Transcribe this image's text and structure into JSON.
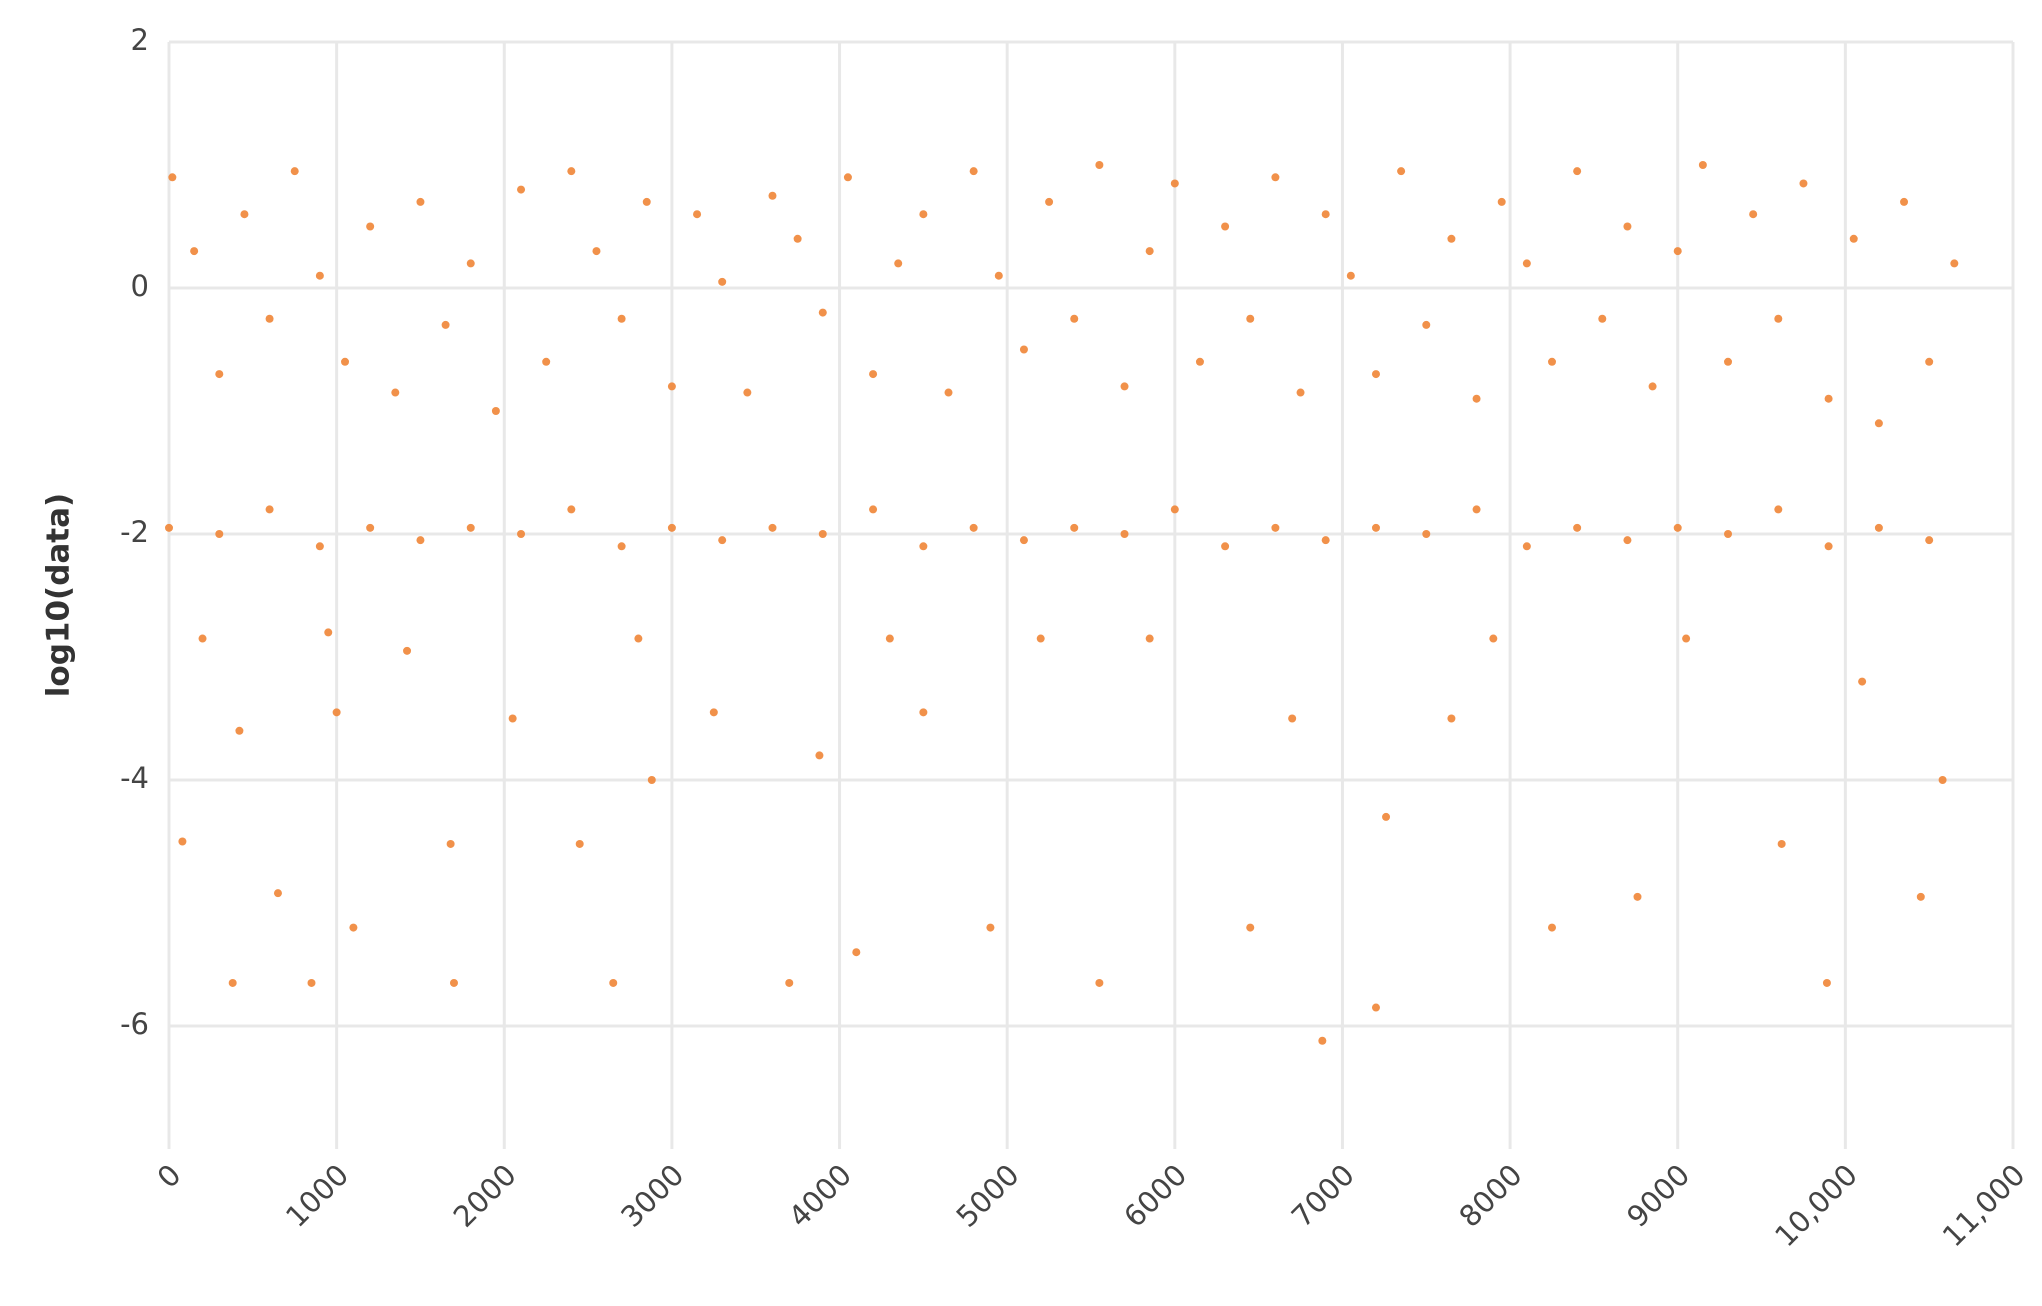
{
  "chart_data": {
    "type": "scatter",
    "y_label": "log10(data)",
    "color": "#ef8536",
    "grid": true,
    "xlim": [
      0,
      11000
    ],
    "ylim": [
      -7,
      2
    ],
    "xticks": [
      0,
      1000,
      2000,
      3000,
      4000,
      5000,
      6000,
      7000,
      8000,
      9000,
      {
        "value": 10000,
        "label": "10,000"
      },
      {
        "value": 11000,
        "label": "11,000"
      }
    ],
    "yticks": [
      2,
      0,
      -2,
      -4,
      -6
    ],
    "series": [
      {
        "x": [
          20,
          150,
          300,
          450,
          600,
          750,
          900,
          1050,
          1200,
          1350,
          1500,
          1650,
          1800,
          1950,
          2100,
          2250,
          2400,
          2550,
          2700,
          2850,
          3000,
          3150,
          3300,
          3450,
          3600,
          3750,
          3900,
          4050,
          4200,
          4350,
          4500,
          4650,
          4800,
          4950,
          5100,
          5250,
          5400,
          5550,
          5700,
          5850,
          6000,
          6150,
          6300,
          6450,
          6600,
          6750,
          6900,
          7050,
          7200,
          7350,
          7500,
          7650,
          7800,
          7950,
          8100,
          8250,
          8400,
          8550,
          8700,
          8850,
          9000,
          9150,
          9300,
          9450,
          9600,
          9750,
          9900,
          10050,
          10200,
          10350,
          10500,
          10650,
          0,
          300,
          600,
          900,
          1200,
          1500,
          1800,
          2100,
          2400,
          2700,
          3000,
          3300,
          3600,
          3900,
          4200,
          4500,
          4800,
          5100,
          5400,
          5700,
          6000,
          6300,
          6600,
          6900,
          7200,
          7500,
          7800,
          8100,
          8400,
          8700,
          9000,
          9300,
          9600,
          9900,
          10200,
          10500,
          80,
          200,
          380,
          420,
          650,
          850,
          950,
          1000,
          1100,
          1420,
          1680,
          1700,
          2050,
          2450,
          2650,
          2800,
          2880,
          3250,
          3700,
          3880,
          4100,
          4300,
          4500,
          4900,
          5200,
          5550,
          5850,
          6450,
          6700,
          6880,
          7200,
          7260,
          7650,
          7900,
          8250,
          8760,
          9050,
          9620,
          9890,
          10100,
          10580,
          10450
        ],
        "values": [
          0.9,
          0.3,
          -0.7,
          0.6,
          -0.25,
          0.95,
          0.1,
          -0.6,
          0.5,
          -0.85,
          0.7,
          -0.3,
          0.2,
          -1.0,
          0.8,
          -0.6,
          0.95,
          0.3,
          -0.25,
          0.7,
          -0.8,
          0.6,
          0.05,
          -0.85,
          0.75,
          0.4,
          -0.2,
          0.9,
          -0.7,
          0.2,
          0.6,
          -0.85,
          0.95,
          0.1,
          -0.5,
          0.7,
          -0.25,
          1.0,
          -0.8,
          0.3,
          0.85,
          -0.6,
          0.5,
          -0.25,
          0.9,
          -0.85,
          0.6,
          0.1,
          -0.7,
          0.95,
          -0.3,
          0.4,
          -0.9,
          0.7,
          0.2,
          -0.6,
          0.95,
          -0.25,
          0.5,
          -0.8,
          0.3,
          1.0,
          -0.6,
          0.6,
          -0.25,
          0.85,
          -0.9,
          0.4,
          -1.1,
          0.7,
          -0.6,
          0.2,
          -1.95,
          -2,
          -1.8,
          -2.1,
          -1.95,
          -2.05,
          -1.95,
          -2,
          -1.8,
          -2.1,
          -1.95,
          -2.05,
          -1.95,
          -2,
          -1.8,
          -2.1,
          -1.95,
          -2.05,
          -1.95,
          -2,
          -1.8,
          -2.1,
          -1.95,
          -2.05,
          -1.95,
          -2,
          -1.8,
          -2.1,
          -1.95,
          -2.05,
          -1.95,
          -2,
          -1.8,
          -2.1,
          -1.95,
          -2.05,
          -4.5,
          -2.85,
          -5.65,
          -3.6,
          -4.92,
          -5.65,
          -2.8,
          -3.45,
          -5.2,
          -2.95,
          -4.52,
          -5.65,
          -3.5,
          -4.52,
          -5.65,
          -2.85,
          -4.0,
          -3.45,
          -5.65,
          -3.8,
          -5.4,
          -2.85,
          -3.45,
          -5.2,
          -2.85,
          -5.65,
          -2.85,
          -5.2,
          -3.5,
          -6.12,
          -5.85,
          -4.3,
          -3.5,
          -2.85,
          -5.2,
          -4.95,
          -2.85,
          -4.52,
          -5.65,
          -3.2,
          -4.0,
          -4.95
        ]
      }
    ]
  }
}
